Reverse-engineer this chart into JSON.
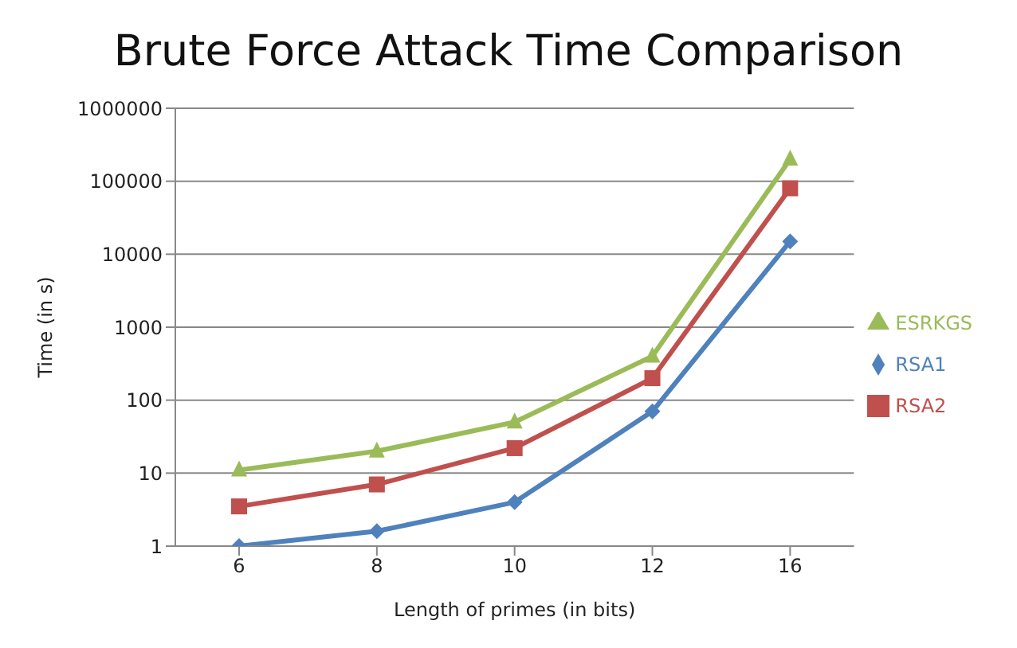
{
  "chart_data": {
    "type": "line",
    "title": "Brute Force Attack Time Comparison",
    "xlabel": "Length of primes (in bits)",
    "ylabel": "Time (in s)",
    "categories": [
      "6",
      "8",
      "10",
      "12",
      "16"
    ],
    "series": [
      {
        "name": "ESRKGS",
        "color": "#9bbb59",
        "marker": "triangle",
        "values": [
          11,
          20,
          50,
          400,
          200000
        ]
      },
      {
        "name": "RSA2",
        "color": "#c0504d",
        "marker": "square",
        "values": [
          3.5,
          7,
          22,
          200,
          80000
        ]
      },
      {
        "name": "RSA1",
        "color": "#4f81bd",
        "marker": "diamond",
        "values": [
          1,
          1.6,
          4,
          70,
          15000
        ]
      }
    ],
    "log": "y",
    "ylim": [
      1,
      1000000
    ],
    "yticks": [
      1,
      10,
      100,
      1000,
      10000,
      100000,
      1000000
    ],
    "grid": "y",
    "legend": "right"
  }
}
